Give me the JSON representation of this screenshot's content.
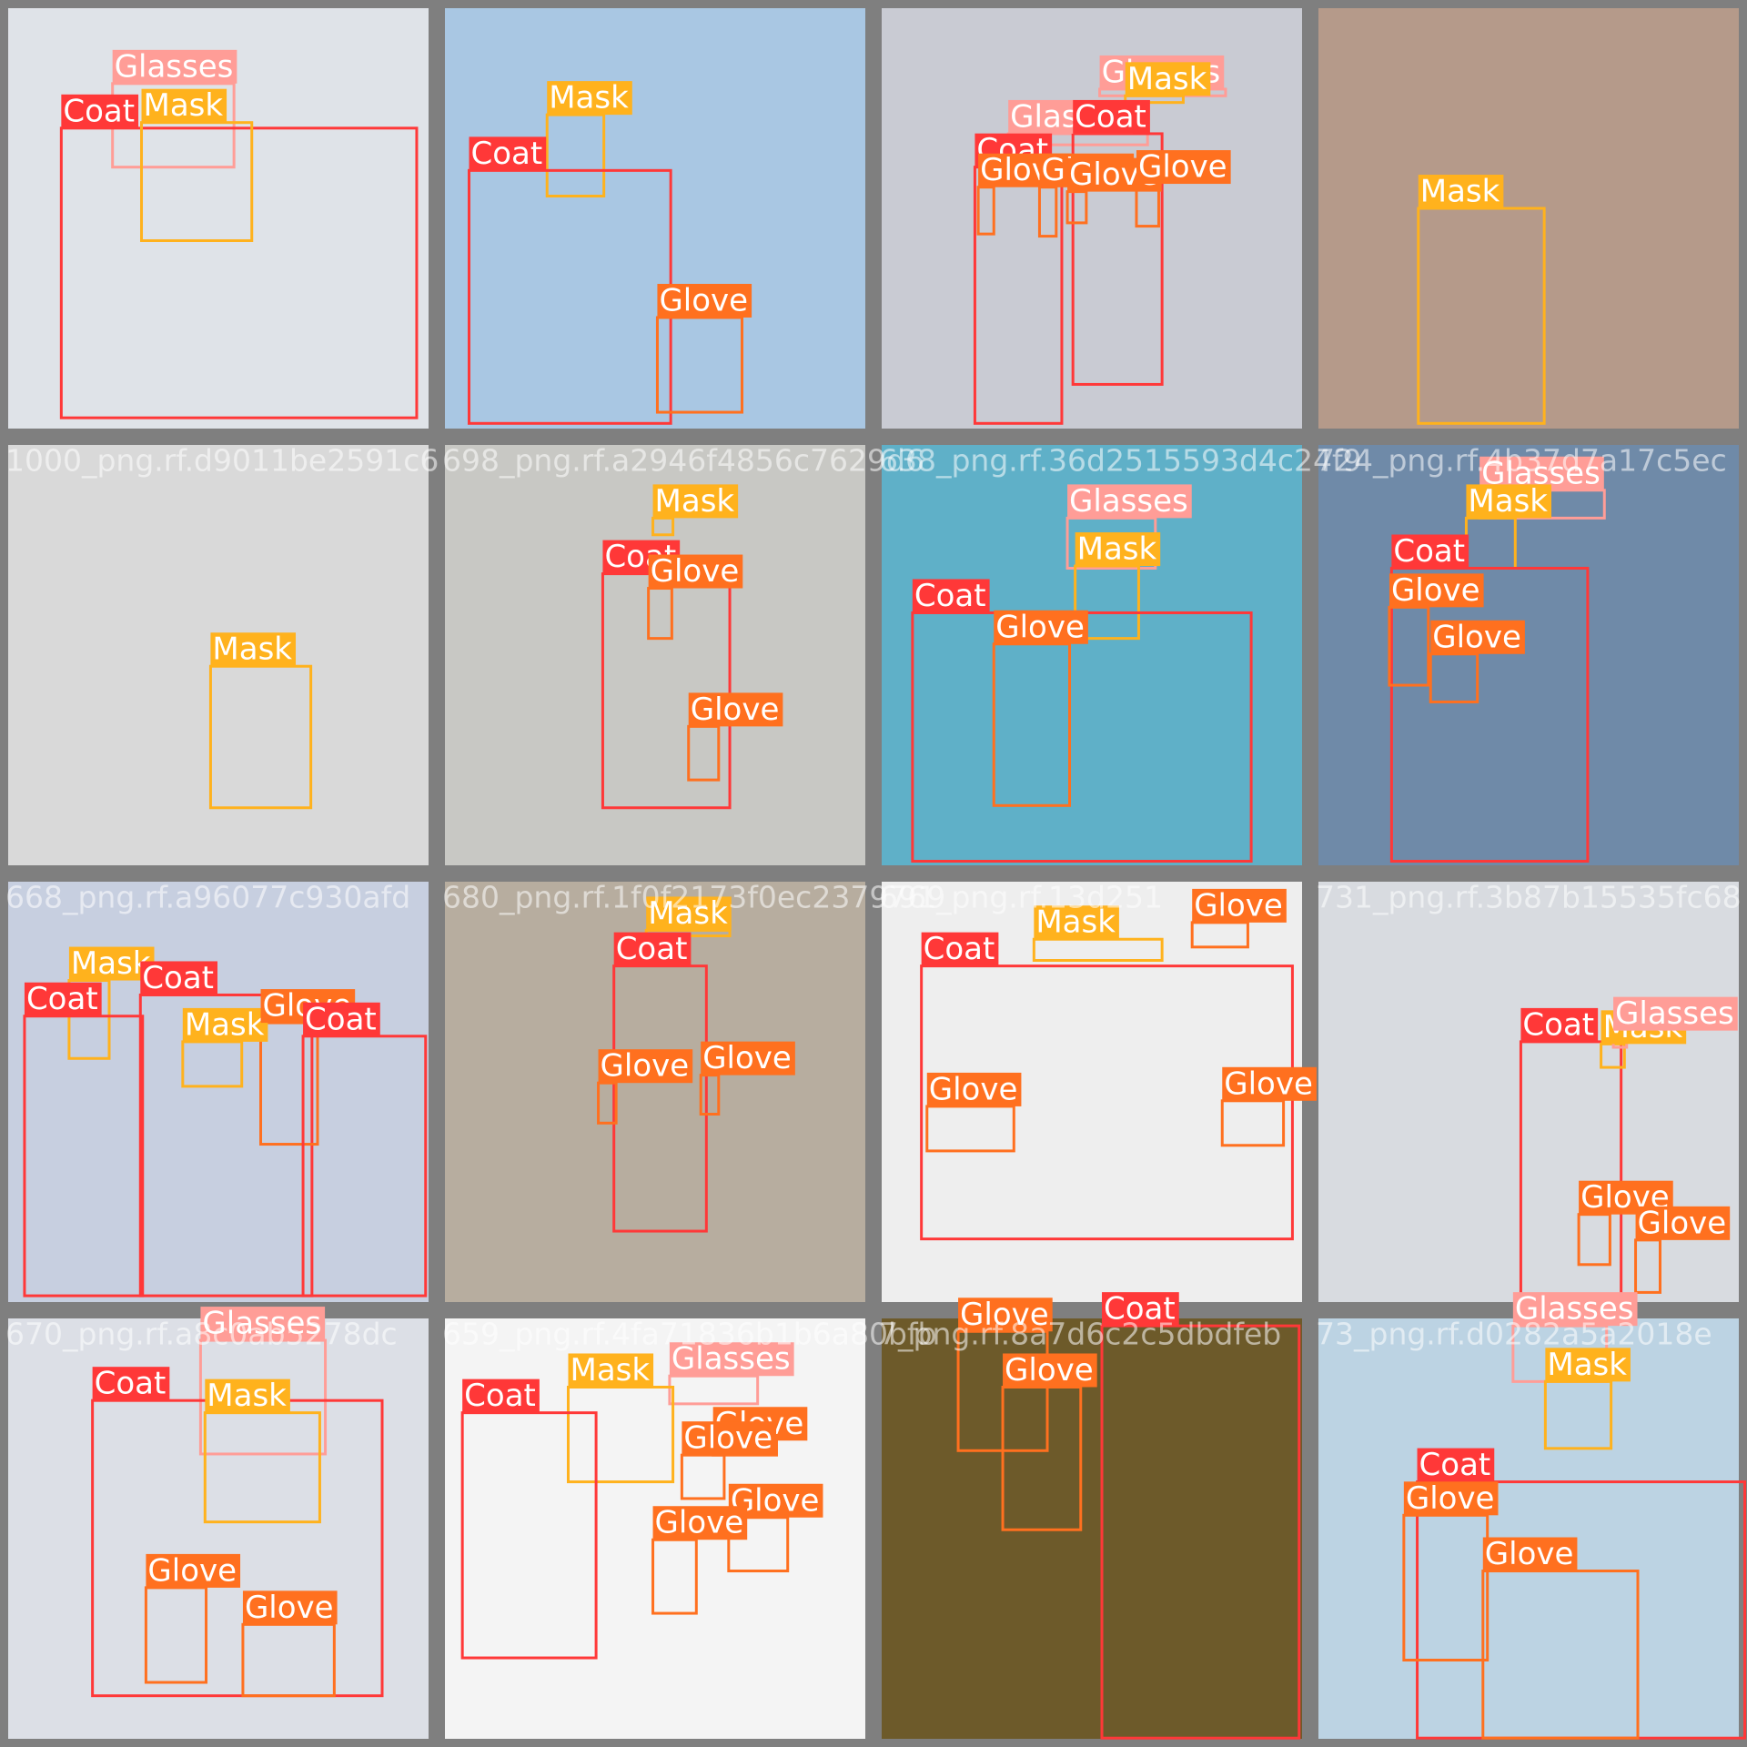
{
  "class_colors": {
    "Coat": "#ff3838",
    "Glasses": "#ff9d97",
    "Glove": "#ff701f",
    "Mask": "#ffb21d"
  },
  "tiles": [
    {
      "boxes": [
        {
          "label": "Glasses"
        },
        {
          "label": "Coat"
        },
        {
          "label": "Mask"
        }
      ]
    },
    {
      "boxes": [
        {
          "label": "Mask"
        },
        {
          "label": "Coat"
        },
        {
          "label": "Glove"
        }
      ]
    },
    {
      "boxes": [
        {
          "label": "Glasses"
        },
        {
          "label": "Mask"
        },
        {
          "label": "Glasses"
        },
        {
          "label": "Coat"
        },
        {
          "label": "Coat"
        },
        {
          "label": "Glove"
        },
        {
          "label": "Glove"
        },
        {
          "label": "Glove"
        },
        {
          "label": "Glove"
        }
      ]
    },
    {
      "boxes": [
        {
          "label": "Mask"
        }
      ]
    },
    {
      "caption": "1000_png.rf.d9011be2591c6",
      "boxes": [
        {
          "label": "Mask"
        }
      ]
    },
    {
      "caption": "698_png.rf.a2946f4856c7629d6",
      "boxes": [
        {
          "label": "Mask"
        },
        {
          "label": "Coat"
        },
        {
          "label": "Glove"
        },
        {
          "label": "Glove"
        }
      ]
    },
    {
      "caption": "638_png.rf.36d2515593d4c24f9",
      "boxes": [
        {
          "label": "Glasses"
        },
        {
          "label": "Mask"
        },
        {
          "label": "Coat"
        },
        {
          "label": "Glove"
        }
      ]
    },
    {
      "caption": "724_png.rf.4b37d7a17c5ec",
      "boxes": [
        {
          "label": "Glasses"
        },
        {
          "label": "Mask"
        },
        {
          "label": "Coat"
        },
        {
          "label": "Glove"
        },
        {
          "label": "Glove"
        }
      ]
    },
    {
      "caption": "668_png.rf.a96077c930afd",
      "boxes": [
        {
          "label": "Mask"
        },
        {
          "label": "Coat"
        },
        {
          "label": "Coat"
        },
        {
          "label": "Mask"
        },
        {
          "label": "Glove"
        },
        {
          "label": "Coat"
        }
      ]
    },
    {
      "caption": "680_png.rf.1f0f2173f0ec2379769",
      "boxes": [
        {
          "label": "Mask"
        },
        {
          "label": "Coat"
        },
        {
          "label": "Glove"
        },
        {
          "label": "Glove"
        }
      ]
    },
    {
      "caption": "691_png.rf.13d251",
      "boxes": [
        {
          "label": "Glove"
        },
        {
          "label": "Mask"
        },
        {
          "label": "Coat"
        },
        {
          "label": "Glove"
        },
        {
          "label": "Glove"
        }
      ]
    },
    {
      "caption": "731_png.rf.3b87b15535fc68",
      "boxes": [
        {
          "label": "Coat"
        },
        {
          "label": "Mask"
        },
        {
          "label": "Glasses"
        },
        {
          "label": "Glove"
        },
        {
          "label": "Glove"
        }
      ]
    },
    {
      "caption": "670_png.rf.a8c0ab5278dc",
      "boxes": [
        {
          "label": "Glasses"
        },
        {
          "label": "Coat"
        },
        {
          "label": "Mask"
        },
        {
          "label": "Glove"
        },
        {
          "label": "Glove"
        }
      ]
    },
    {
      "caption": "659_png.rf.4fa71836b1b6a80bfb",
      "boxes": [
        {
          "label": "Glasses"
        },
        {
          "label": "Mask"
        },
        {
          "label": "Coat"
        },
        {
          "label": "Glove"
        },
        {
          "label": "Glove"
        },
        {
          "label": "Glove"
        },
        {
          "label": "Glove"
        }
      ]
    },
    {
      "caption": "7_png.rf.8a7d6c2c5dbdfeb",
      "boxes": [
        {
          "label": "Glove"
        },
        {
          "label": "Glove"
        },
        {
          "label": "Coat"
        }
      ]
    },
    {
      "caption": "73_png.rf.d0282a5a2018e",
      "boxes": [
        {
          "label": "Glasses"
        },
        {
          "label": "Mask"
        },
        {
          "label": "Coat"
        },
        {
          "label": "Glove"
        },
        {
          "label": "Glove"
        }
      ]
    }
  ]
}
